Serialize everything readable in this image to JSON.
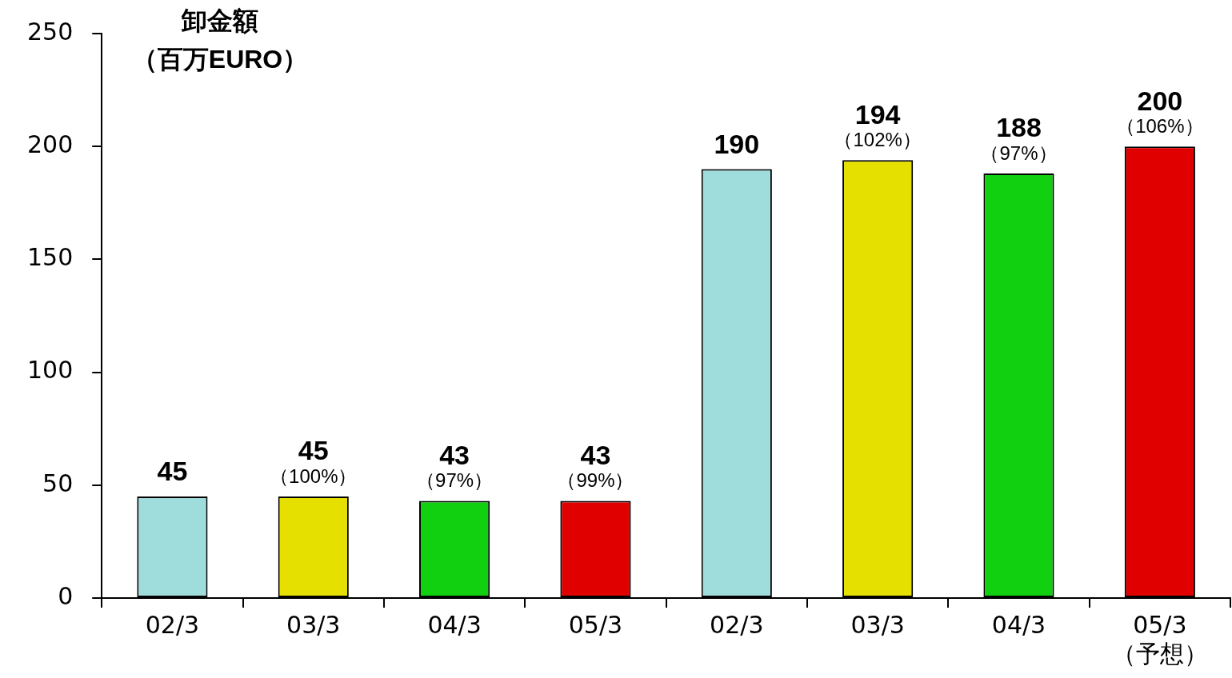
{
  "chart_data": {
    "type": "bar",
    "ylabel": "卸金額（百万EURO）",
    "categories": [
      "02/3",
      "03/3",
      "04/3",
      "05/3",
      "02/3",
      "03/3",
      "04/3",
      "05/3\n（予想）"
    ],
    "values": [
      45,
      45,
      43,
      43,
      190,
      194,
      188,
      200
    ],
    "colors": [
      "#9fdcdc",
      "#e6e000",
      "#10d010",
      "#e00000",
      "#9fdcdc",
      "#e6e000",
      "#10d010",
      "#e00000"
    ],
    "value_labels": [
      "45",
      "45\n（100%）",
      "43\n（97%）",
      "43\n（99%）",
      "190",
      "194\n（102%）",
      "188\n（97%）",
      "200\n（106%）"
    ],
    "ylim": [
      0,
      250
    ],
    "yticks": [
      0,
      50,
      100,
      150,
      200,
      250
    ],
    "legend": false,
    "grid": false
  }
}
